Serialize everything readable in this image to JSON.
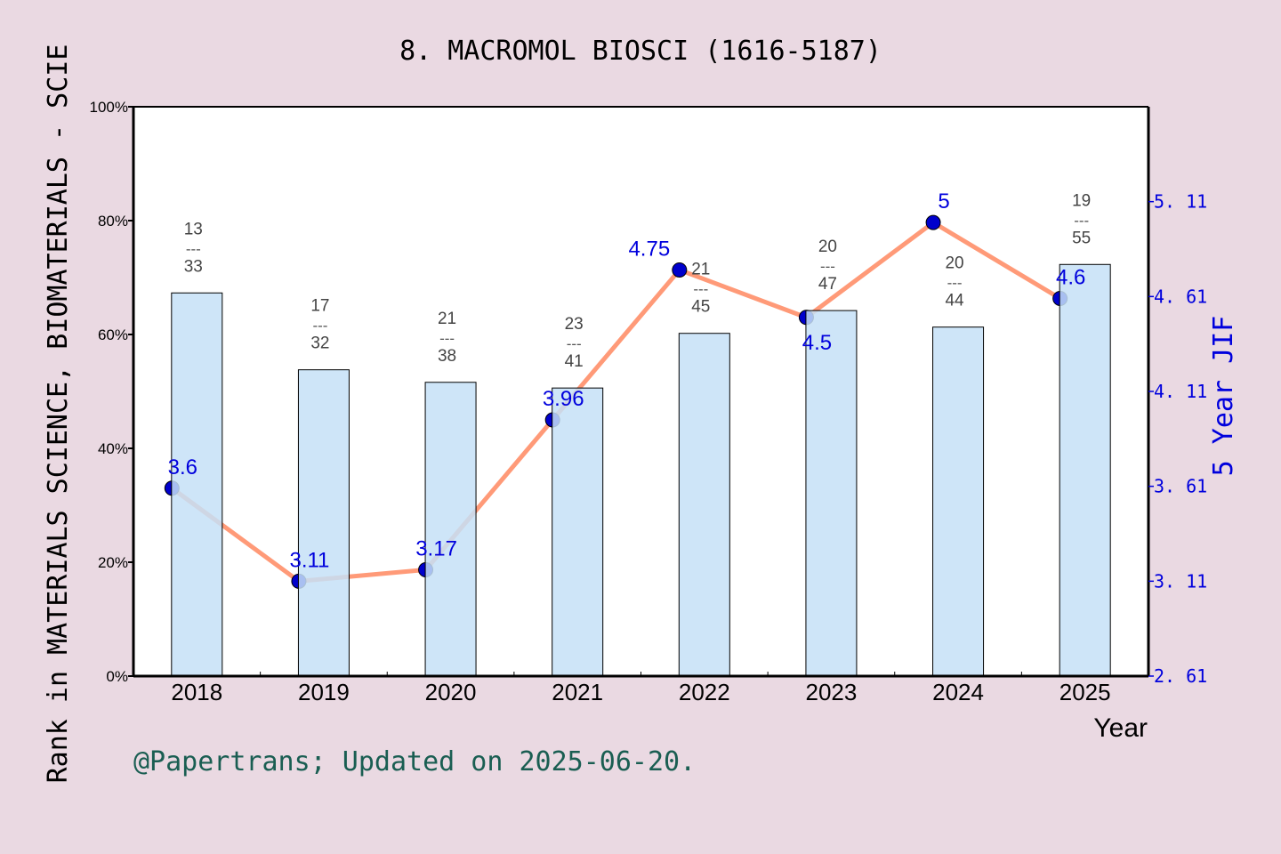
{
  "chart_data": {
    "type": "bar+line",
    "title": "8. MACROMOL BIOSCI (1616-5187)",
    "xlabel": "Year",
    "ylabel_left": "Rank in MATERIALS SCIENCE, BIOMATERIALS - SCIE",
    "ylabel_right": "5 Year JIF",
    "categories": [
      "2018",
      "2019",
      "2020",
      "2021",
      "2022",
      "2023",
      "2024",
      "2025"
    ],
    "left_ylim": [
      0,
      100
    ],
    "left_ticks": [
      "0%",
      "20%",
      "40%",
      "60%",
      "80%",
      "100%"
    ],
    "right_ylim": [
      2.61,
      5.61
    ],
    "right_ticks": [
      "2.61",
      "3.11",
      "3.61",
      "4.11",
      "4.61",
      "5.11"
    ],
    "bars": {
      "values_percent": [
        67.3,
        53.8,
        51.6,
        50.6,
        60.2,
        64.2,
        61.3,
        72.3
      ],
      "rank_labels": [
        {
          "rank": "13",
          "total": "33"
        },
        {
          "rank": "17",
          "total": "32"
        },
        {
          "rank": "21",
          "total": "38"
        },
        {
          "rank": "23",
          "total": "41"
        },
        {
          "rank": "21",
          "total": "45"
        },
        {
          "rank": "20",
          "total": "47"
        },
        {
          "rank": "20",
          "total": "44"
        },
        {
          "rank": "19",
          "total": "55"
        }
      ],
      "separator": "---",
      "color": "#c5e0f7"
    },
    "line": {
      "values": [
        3.6,
        3.11,
        3.17,
        3.96,
        4.75,
        4.5,
        5,
        4.6
      ],
      "labels": [
        "3.6",
        "3.11",
        "3.17",
        "3.96",
        "4.75",
        "4.5",
        "5",
        "4.6"
      ],
      "line_color": "#ff9a78",
      "marker_color": "#0000cc"
    },
    "footer": "@Papertrans; Updated on 2025-06-20.",
    "grid": false
  }
}
